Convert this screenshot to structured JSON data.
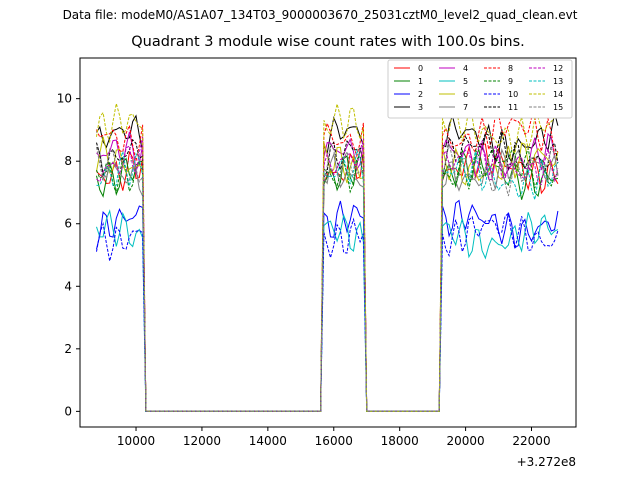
{
  "figure": {
    "suptitle": "Data file: modeM0/AS1A07_134T03_9000003670_25031cztM0_level2_quad_clean.evt"
  },
  "chart_data": {
    "type": "line",
    "title": "Quadrant 3 module wise count rates with 100.0s bins.",
    "xlabel": "",
    "ylabel": "",
    "x_offset_label": "+3.272e8",
    "xlim": [
      8300,
      23350
    ],
    "ylim": [
      -0.5,
      11.3
    ],
    "xticks": [
      10000,
      12000,
      14000,
      16000,
      18000,
      20000,
      22000
    ],
    "xtick_labels": [
      "10000",
      "12000",
      "14000",
      "16000",
      "18000",
      "20000",
      "22000"
    ],
    "yticks": [
      0,
      2,
      4,
      6,
      8,
      10
    ],
    "ytick_labels": [
      "0",
      "2",
      "4",
      "6",
      "8",
      "10"
    ],
    "grid": false,
    "legend_position": "top-right",
    "segments": [
      {
        "start": 8800,
        "end": 10200
      },
      {
        "start": 15700,
        "end": 16900
      },
      {
        "start": 19300,
        "end": 22800
      }
    ],
    "series": [
      {
        "name": "0",
        "color": "#ff0000",
        "dash": "solid",
        "level": 7.8
      },
      {
        "name": "1",
        "color": "#008000",
        "dash": "solid",
        "level": 7.6
      },
      {
        "name": "2",
        "color": "#0000ff",
        "dash": "solid",
        "level": 6.0
      },
      {
        "name": "3",
        "color": "#000000",
        "dash": "solid",
        "level": 8.7
      },
      {
        "name": "4",
        "color": "#bf00bf",
        "dash": "solid",
        "level": 8.1
      },
      {
        "name": "5",
        "color": "#00bfbf",
        "dash": "solid",
        "level": 5.6
      },
      {
        "name": "6",
        "color": "#bfbf00",
        "dash": "solid",
        "level": 7.9
      },
      {
        "name": "7",
        "color": "#808080",
        "dash": "solid",
        "level": 7.7
      },
      {
        "name": "8",
        "color": "#ff0000",
        "dash": "dashed",
        "level": 8.9
      },
      {
        "name": "9",
        "color": "#008000",
        "dash": "dashed",
        "level": 7.8
      },
      {
        "name": "10",
        "color": "#0000ff",
        "dash": "dashed",
        "level": 5.7
      },
      {
        "name": "11",
        "color": "#000000",
        "dash": "dashed",
        "level": 8.3
      },
      {
        "name": "12",
        "color": "#bf00bf",
        "dash": "dashed",
        "level": 7.9
      },
      {
        "name": "13",
        "color": "#00bfbf",
        "dash": "dashed",
        "level": 7.5
      },
      {
        "name": "14",
        "color": "#bfbf00",
        "dash": "dashed",
        "level": 9.0
      },
      {
        "name": "15",
        "color": "#808080",
        "dash": "dashed",
        "level": 7.7
      }
    ]
  }
}
